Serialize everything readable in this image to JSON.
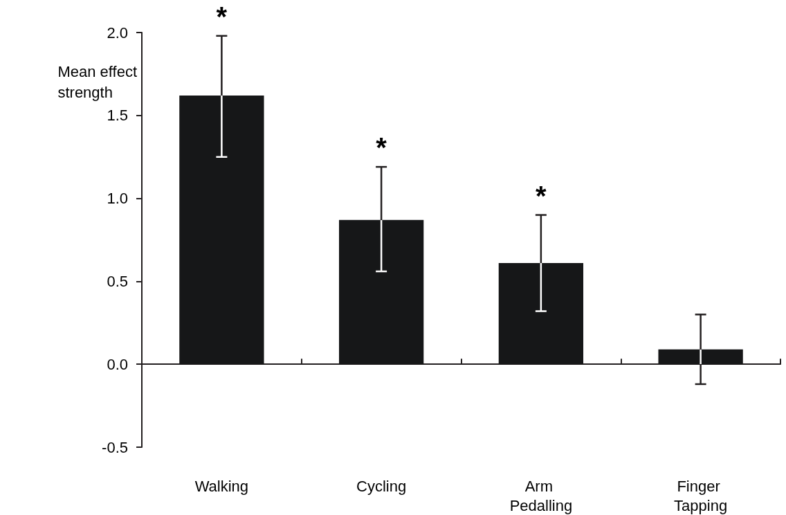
{
  "chart_data": {
    "type": "bar",
    "categories": [
      "Walking",
      "Cycling",
      "Arm Pedalling",
      "Finger Tapping"
    ],
    "values": [
      1.62,
      0.87,
      0.61,
      0.09
    ],
    "errors": [
      [
        1.25,
        1.98
      ],
      [
        0.56,
        1.19
      ],
      [
        0.32,
        0.9
      ],
      [
        -0.12,
        0.3
      ]
    ],
    "color": "#161718",
    "ylabel": "Mean effect strength",
    "ylim": [
      -0.5,
      2.0
    ],
    "yticks": [
      {
        "value": -0.5,
        "label": "-0.5"
      },
      {
        "value": 0,
        "label": "0.0"
      },
      {
        "value": 0.5,
        "label": "0.5"
      },
      {
        "value": 1,
        "label": "1.0"
      },
      {
        "value": 1.5,
        "label": "1.5"
      },
      {
        "value": 2,
        "label": "2.0"
      }
    ],
    "annotations": [
      "*",
      "*",
      "*"
    ]
  }
}
